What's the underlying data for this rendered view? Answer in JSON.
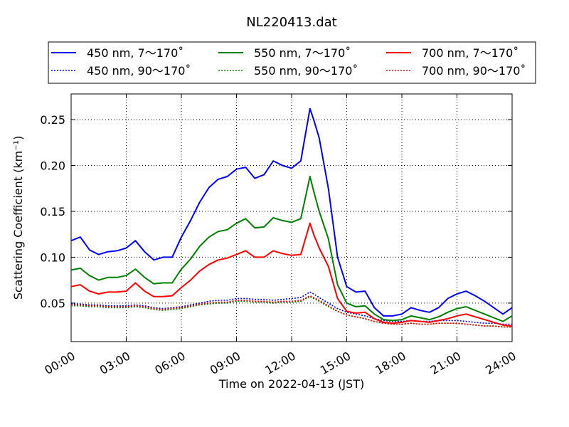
{
  "chart_data": {
    "type": "line",
    "title": "NL220413.dat",
    "xlabel": "Time on 2022-04-13 (JST)",
    "ylabel": "Scattering Coefficient (km⁻¹)",
    "xlim": [
      "00:00",
      "24:00"
    ],
    "ylim": [
      0.008,
      0.278
    ],
    "x_ticks": [
      "00:00",
      "03:00",
      "06:00",
      "09:00",
      "12:00",
      "15:00",
      "18:00",
      "21:00",
      "24:00"
    ],
    "y_ticks": [
      "0.05",
      "0.10",
      "0.15",
      "0.20",
      "0.25"
    ],
    "grid": true,
    "legend_position": "top",
    "x_hours": [
      0,
      0.5,
      1,
      1.5,
      2,
      2.5,
      3,
      3.5,
      4,
      4.5,
      5,
      5.5,
      6,
      6.5,
      7,
      7.5,
      8,
      8.5,
      9,
      9.5,
      10,
      10.5,
      11,
      11.5,
      12,
      12.5,
      13,
      13.2,
      13.5,
      14,
      14.5,
      15,
      15.5,
      16,
      16.5,
      17,
      17.5,
      18,
      18.5,
      19,
      19.5,
      20,
      20.5,
      21,
      21.5,
      22,
      22.5,
      23,
      23.5,
      24
    ],
    "series": [
      {
        "name": "450 nm, 7～170˚",
        "color": "#0000ff",
        "style": "solid",
        "values": [
          0.118,
          0.122,
          0.108,
          0.103,
          0.106,
          0.107,
          0.11,
          0.118,
          0.106,
          0.097,
          0.1,
          0.1,
          0.122,
          0.14,
          0.16,
          0.176,
          0.185,
          0.188,
          0.196,
          0.198,
          0.186,
          0.19,
          0.205,
          0.2,
          0.197,
          0.205,
          0.262,
          0.25,
          0.23,
          0.175,
          0.1,
          0.068,
          0.062,
          0.063,
          0.045,
          0.036,
          0.036,
          0.038,
          0.045,
          0.042,
          0.04,
          0.045,
          0.055,
          0.06,
          0.063,
          0.058,
          0.052,
          0.045,
          0.038,
          0.045
        ]
      },
      {
        "name": "450 nm, 90～170˚",
        "color": "#0000ff",
        "style": "dotted",
        "values": [
          0.049,
          0.049,
          0.048,
          0.048,
          0.047,
          0.047,
          0.047,
          0.048,
          0.047,
          0.045,
          0.044,
          0.045,
          0.046,
          0.048,
          0.05,
          0.052,
          0.053,
          0.053,
          0.055,
          0.055,
          0.054,
          0.054,
          0.053,
          0.054,
          0.055,
          0.056,
          0.062,
          0.06,
          0.056,
          0.05,
          0.044,
          0.04,
          0.038,
          0.036,
          0.033,
          0.031,
          0.03,
          0.03,
          0.031,
          0.03,
          0.03,
          0.031,
          0.031,
          0.031,
          0.03,
          0.029,
          0.028,
          0.028,
          0.027,
          0.027
        ]
      },
      {
        "name": "550 nm, 7～170˚",
        "color": "#008000",
        "style": "solid",
        "values": [
          0.086,
          0.088,
          0.08,
          0.075,
          0.078,
          0.078,
          0.08,
          0.087,
          0.078,
          0.071,
          0.072,
          0.072,
          0.087,
          0.098,
          0.112,
          0.122,
          0.128,
          0.13,
          0.137,
          0.142,
          0.132,
          0.133,
          0.143,
          0.14,
          0.138,
          0.142,
          0.188,
          0.172,
          0.15,
          0.12,
          0.07,
          0.05,
          0.046,
          0.047,
          0.038,
          0.032,
          0.031,
          0.032,
          0.036,
          0.034,
          0.032,
          0.035,
          0.04,
          0.044,
          0.046,
          0.042,
          0.038,
          0.034,
          0.03,
          0.036
        ]
      },
      {
        "name": "550 nm, 90～170˚",
        "color": "#008000",
        "style": "dotted",
        "values": [
          0.047,
          0.047,
          0.046,
          0.046,
          0.045,
          0.045,
          0.045,
          0.046,
          0.045,
          0.043,
          0.042,
          0.043,
          0.044,
          0.046,
          0.048,
          0.049,
          0.05,
          0.05,
          0.052,
          0.052,
          0.051,
          0.051,
          0.05,
          0.051,
          0.051,
          0.052,
          0.057,
          0.055,
          0.052,
          0.046,
          0.041,
          0.037,
          0.035,
          0.033,
          0.03,
          0.028,
          0.027,
          0.027,
          0.028,
          0.027,
          0.027,
          0.028,
          0.028,
          0.028,
          0.027,
          0.026,
          0.025,
          0.025,
          0.024,
          0.024
        ]
      },
      {
        "name": "700 nm, 7～170˚",
        "color": "#ff0000",
        "style": "solid",
        "values": [
          0.068,
          0.07,
          0.063,
          0.06,
          0.062,
          0.062,
          0.063,
          0.072,
          0.063,
          0.057,
          0.057,
          0.058,
          0.067,
          0.075,
          0.085,
          0.092,
          0.097,
          0.099,
          0.103,
          0.107,
          0.1,
          0.1,
          0.107,
          0.104,
          0.102,
          0.103,
          0.137,
          0.125,
          0.11,
          0.09,
          0.055,
          0.041,
          0.039,
          0.04,
          0.033,
          0.029,
          0.028,
          0.029,
          0.031,
          0.03,
          0.029,
          0.031,
          0.033,
          0.036,
          0.038,
          0.035,
          0.032,
          0.029,
          0.026,
          0.025
        ]
      },
      {
        "name": "700 nm, 90～170˚",
        "color": "#ff0000",
        "style": "dotted",
        "values": [
          0.048,
          0.048,
          0.047,
          0.047,
          0.046,
          0.046,
          0.046,
          0.047,
          0.046,
          0.044,
          0.043,
          0.044,
          0.045,
          0.047,
          0.049,
          0.05,
          0.051,
          0.051,
          0.053,
          0.053,
          0.052,
          0.052,
          0.051,
          0.052,
          0.052,
          0.053,
          0.058,
          0.056,
          0.053,
          0.047,
          0.041,
          0.037,
          0.035,
          0.033,
          0.03,
          0.028,
          0.027,
          0.027,
          0.028,
          0.027,
          0.027,
          0.028,
          0.028,
          0.028,
          0.027,
          0.026,
          0.025,
          0.025,
          0.024,
          0.024
        ]
      }
    ]
  }
}
